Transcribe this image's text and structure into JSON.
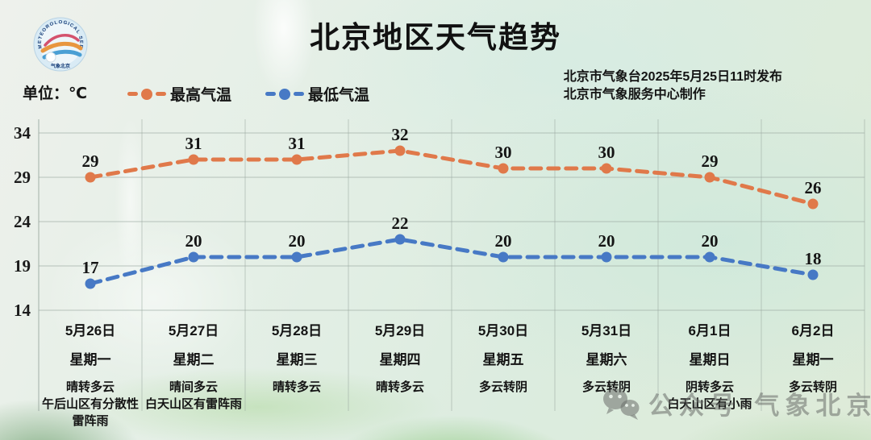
{
  "header": {
    "title": "北京地区天气趋势",
    "unit_label": "单位：℃",
    "issuer_line1": "北京市气象台2025年5月25日11时发布",
    "issuer_line2": "北京市气象服务中心制作"
  },
  "logo": {
    "ring_text": "METEOROLOGICAL SERVICE",
    "bottom_text": "气象北京"
  },
  "colors": {
    "high": "#E0794A",
    "low": "#4779C5",
    "grid": "#9aa8a0",
    "text": "#141414",
    "watermark": "#696e69"
  },
  "watermark": {
    "text": "公众号·气象北京"
  },
  "chart_data": {
    "type": "line",
    "title": "北京地区天气趋势",
    "unit": "℃",
    "grid": true,
    "legend_position": "top-left",
    "line_style": "dashed-with-markers",
    "ylim": [
      14,
      34
    ],
    "yticks": [
      14,
      19,
      24,
      29,
      34
    ],
    "series": [
      {
        "name": "最高气温",
        "color": "#E0794A",
        "values": [
          29,
          31,
          31,
          32,
          30,
          30,
          29,
          26
        ]
      },
      {
        "name": "最低气温",
        "color": "#4779C5",
        "values": [
          17,
          20,
          20,
          22,
          20,
          20,
          20,
          18
        ]
      }
    ],
    "categories": [
      {
        "date": "5月26日",
        "weekday": "星期一",
        "weather": [
          "晴转多云",
          "午后山区有分散性",
          "雷阵雨"
        ]
      },
      {
        "date": "5月27日",
        "weekday": "星期二",
        "weather": [
          "晴间多云",
          "白天山区有雷阵雨"
        ]
      },
      {
        "date": "5月28日",
        "weekday": "星期三",
        "weather": [
          "晴转多云"
        ]
      },
      {
        "date": "5月29日",
        "weekday": "星期四",
        "weather": [
          "晴转多云"
        ]
      },
      {
        "date": "5月30日",
        "weekday": "星期五",
        "weather": [
          "多云转阴"
        ]
      },
      {
        "date": "5月31日",
        "weekday": "星期六",
        "weather": [
          "多云转阴"
        ]
      },
      {
        "date": "6月1日",
        "weekday": "星期日",
        "weather": [
          "阴转多云",
          "白天山区有小雨"
        ]
      },
      {
        "date": "6月2日",
        "weekday": "星期一",
        "weather": [
          "多云转阴"
        ]
      }
    ]
  }
}
